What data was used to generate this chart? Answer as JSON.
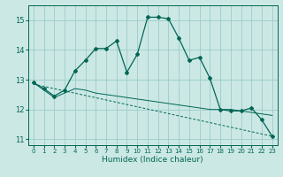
{
  "xlabel": "Humidex (Indice chaleur)",
  "background_color": "#cce8e4",
  "grid_color": "#99cccc",
  "line_color": "#006655",
  "xlim": [
    -0.5,
    23.5
  ],
  "ylim": [
    10.8,
    15.5
  ],
  "yticks": [
    11,
    12,
    13,
    14,
    15
  ],
  "xticks": [
    0,
    1,
    2,
    3,
    4,
    5,
    6,
    7,
    8,
    9,
    10,
    11,
    12,
    13,
    14,
    15,
    16,
    17,
    18,
    19,
    20,
    21,
    22,
    23
  ],
  "line1_x": [
    0,
    1,
    2,
    3,
    4,
    5,
    6,
    7,
    8,
    9,
    10,
    11,
    12,
    13,
    14,
    15,
    16,
    17,
    18,
    19,
    20,
    21,
    22,
    23
  ],
  "line1_y": [
    12.9,
    12.7,
    12.45,
    12.65,
    13.3,
    13.65,
    14.05,
    14.05,
    14.3,
    13.25,
    13.85,
    15.1,
    15.1,
    15.05,
    14.4,
    13.65,
    13.75,
    13.05,
    12.0,
    11.95,
    11.95,
    12.05,
    11.65,
    11.1
  ],
  "line2_x": [
    0,
    1,
    2,
    3,
    4,
    5,
    6,
    7,
    8,
    9,
    10,
    11,
    12,
    13,
    14,
    15,
    16,
    17,
    18,
    19,
    20,
    21,
    22,
    23
  ],
  "line2_y": [
    12.9,
    12.65,
    12.4,
    12.55,
    12.7,
    12.65,
    12.55,
    12.5,
    12.45,
    12.4,
    12.35,
    12.3,
    12.25,
    12.2,
    12.15,
    12.1,
    12.05,
    12.0,
    12.0,
    12.0,
    11.95,
    11.9,
    11.85,
    11.8
  ],
  "line3_x": [
    0,
    23
  ],
  "line3_y": [
    12.85,
    11.1
  ]
}
